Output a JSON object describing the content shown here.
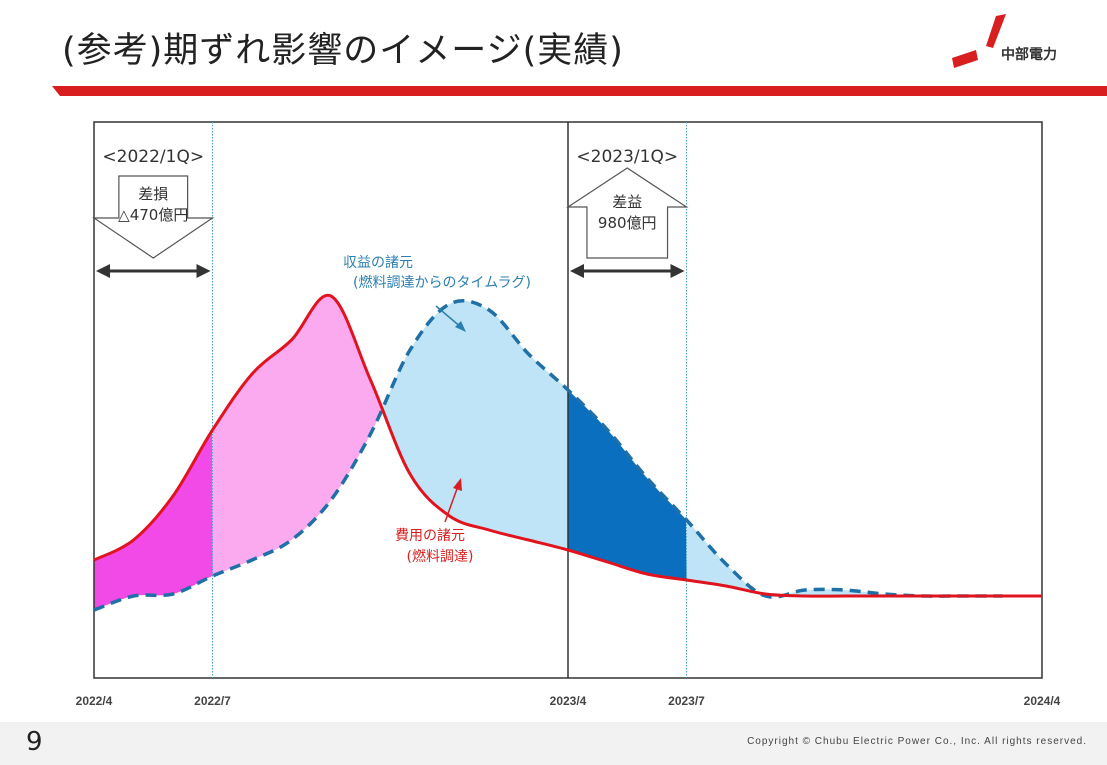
{
  "slide": {
    "title": "(参考)期ずれ影響のイメージ(実績)",
    "logo_text": "中部電力",
    "page_number": "9",
    "copyright": "Copyright © Chubu Electric Power Co., Inc. All rights reserved."
  },
  "colors": {
    "accent_red": "#d81e1e",
    "cost_line": "#e0141e",
    "revenue_line": "#1f6fa8",
    "loss_fill_dark": "#f24ae6",
    "loss_fill_light": "#fcaaf0",
    "gain_fill_light": "#bfe4f7",
    "gain_fill_dark": "#0a6fbf",
    "annotation_blue": "#2a7fb0"
  },
  "chart_data": {
    "type": "area",
    "title": "",
    "xlabel": "",
    "ylabel": "",
    "x_tick_labels": [
      "2022/4",
      "2022/7",
      "2023/4",
      "2023/7",
      "2024/4"
    ],
    "x_range_months": [
      "2022/4",
      "2024/4"
    ],
    "grid": false,
    "series": [
      {
        "name": "費用の諸元(燃料調達)",
        "style": "solid",
        "x": [
          "2022/4",
          "2022/5",
          "2022/6",
          "2022/7",
          "2022/8",
          "2022/9",
          "2022/10",
          "2022/11",
          "2022/12",
          "2023/1",
          "2023/2",
          "2023/3",
          "2023/4",
          "2023/5",
          "2023/6",
          "2023/7",
          "2023/8",
          "2023/9",
          "2023/10",
          "2023/11",
          "2023/12",
          "2024/1",
          "2024/2",
          "2024/3",
          "2024/4"
        ],
        "values": [
          0.3,
          0.4,
          0.62,
          0.95,
          1.23,
          1.4,
          1.62,
          1.2,
          0.73,
          0.52,
          0.45,
          0.4,
          0.35,
          0.29,
          0.23,
          0.2,
          0.17,
          0.13,
          0.12,
          0.12,
          0.12,
          0.12,
          0.12,
          0.12,
          0.12
        ]
      },
      {
        "name": "収益の諸元(燃料調達からのタイムラグ)",
        "style": "dashed",
        "x": [
          "2022/4",
          "2022/5",
          "2022/6",
          "2022/7",
          "2022/8",
          "2022/9",
          "2022/10",
          "2022/11",
          "2022/12",
          "2023/1",
          "2023/2",
          "2023/3",
          "2023/4",
          "2023/5",
          "2023/6",
          "2023/7",
          "2023/8",
          "2023/9",
          "2023/10",
          "2023/11",
          "2023/12",
          "2024/1",
          "2024/2",
          "2024/3"
        ],
        "values": [
          0.05,
          0.12,
          0.13,
          0.22,
          0.3,
          0.4,
          0.6,
          0.93,
          1.35,
          1.58,
          1.55,
          1.33,
          1.15,
          0.95,
          0.71,
          0.5,
          0.28,
          0.12,
          0.15,
          0.15,
          0.13,
          0.12,
          0.12,
          0.12
        ]
      }
    ],
    "periods": [
      {
        "label": "<2022/1Q>",
        "start": "2022/4",
        "end": "2022/7",
        "kind": "loss",
        "box_title": "差損",
        "box_value": "△470億円"
      },
      {
        "label": "<2023/1Q>",
        "start": "2023/4",
        "end": "2023/7",
        "kind": "gain",
        "box_title": "差益",
        "box_value": "980億円"
      }
    ],
    "annotations": {
      "revenue_label_1": "収益の諸元",
      "revenue_label_2": "(燃料調達からのタイムラグ)",
      "cost_label_1": "費用の諸元",
      "cost_label_2": "(燃料調達)"
    }
  }
}
